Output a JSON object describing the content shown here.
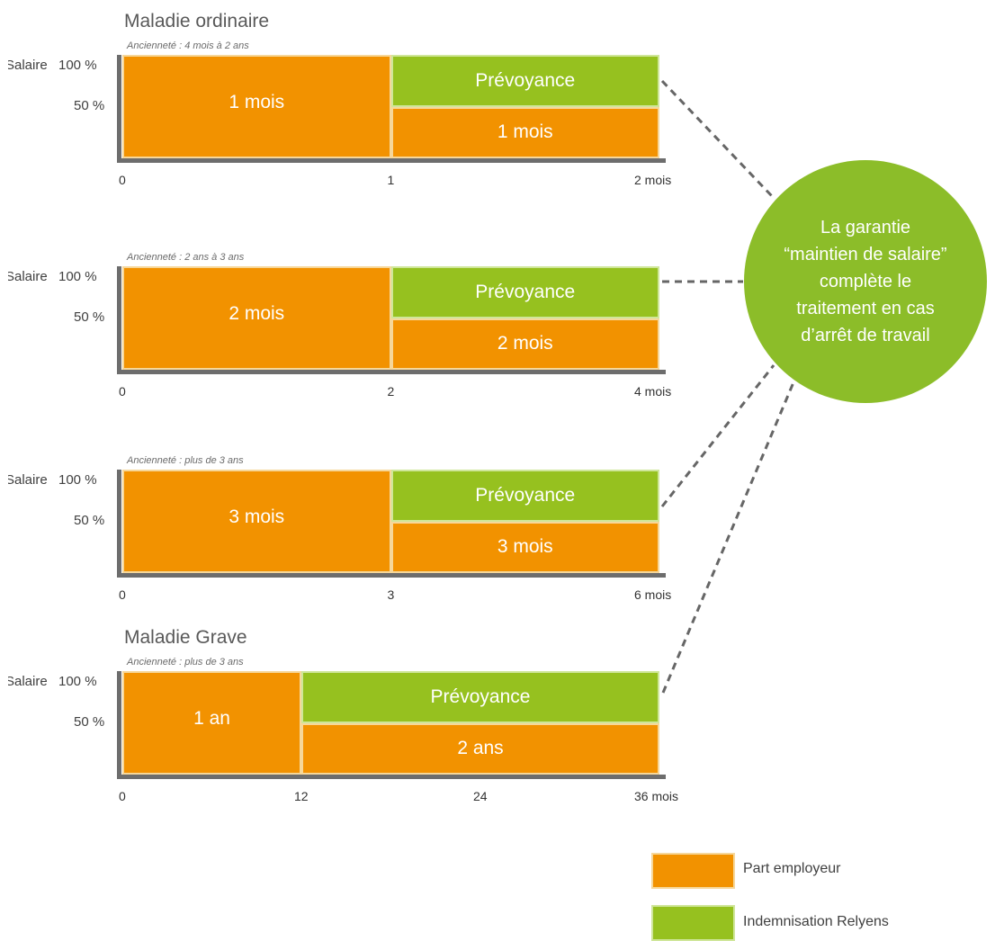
{
  "colors": {
    "employer": "#f29200",
    "relyens": "#96c11f",
    "circle": "#8cbd29",
    "axis": "#6d6d6d"
  },
  "callout": {
    "text": "La garantie\n“maintien de salaire”\ncomplète le\ntraitement en cas\nd’arrêt de travail"
  },
  "legend": [
    {
      "label": "Part employeur",
      "color": "#f29200"
    },
    {
      "label": "Indemnisation Relyens",
      "color": "#96c11f"
    }
  ],
  "chart_data": [
    {
      "type": "bar",
      "title": "Maladie ordinaire",
      "subtitle": "Ancienneté : 4 mois à 2 ans",
      "y_axis_label": "Salaire",
      "y_ticks": [
        "100 %",
        "50 %"
      ],
      "x_ticks": [
        "0",
        "1",
        "2 mois"
      ],
      "x_unit": "mois",
      "xlim": [
        0,
        2
      ],
      "segments": [
        {
          "series": "Part employeur",
          "x_start": 0,
          "x_end": 1,
          "salary_from": 0,
          "salary_to": 100,
          "label": "1 mois"
        },
        {
          "series": "Part employeur",
          "x_start": 1,
          "x_end": 2,
          "salary_from": 0,
          "salary_to": 50,
          "label": "1 mois"
        },
        {
          "series": "Indemnisation Relyens",
          "x_start": 1,
          "x_end": 2,
          "salary_from": 50,
          "salary_to": 100,
          "label": "Prévoyance"
        }
      ]
    },
    {
      "type": "bar",
      "subtitle": "Ancienneté : 2 ans à 3 ans",
      "y_axis_label": "Salaire",
      "y_ticks": [
        "100 %",
        "50 %"
      ],
      "x_ticks": [
        "0",
        "2",
        "4 mois"
      ],
      "x_unit": "mois",
      "xlim": [
        0,
        4
      ],
      "segments": [
        {
          "series": "Part employeur",
          "x_start": 0,
          "x_end": 2,
          "salary_from": 0,
          "salary_to": 100,
          "label": "2 mois"
        },
        {
          "series": "Part employeur",
          "x_start": 2,
          "x_end": 4,
          "salary_from": 0,
          "salary_to": 50,
          "label": "2 mois"
        },
        {
          "series": "Indemnisation Relyens",
          "x_start": 2,
          "x_end": 4,
          "salary_from": 50,
          "salary_to": 100,
          "label": "Prévoyance"
        }
      ]
    },
    {
      "type": "bar",
      "subtitle": "Ancienneté : plus de 3 ans",
      "y_axis_label": "Salaire",
      "y_ticks": [
        "100 %",
        "50 %"
      ],
      "x_ticks": [
        "0",
        "3",
        "6 mois"
      ],
      "x_unit": "mois",
      "xlim": [
        0,
        6
      ],
      "segments": [
        {
          "series": "Part employeur",
          "x_start": 0,
          "x_end": 3,
          "salary_from": 0,
          "salary_to": 100,
          "label": "3 mois"
        },
        {
          "series": "Part employeur",
          "x_start": 3,
          "x_end": 6,
          "salary_from": 0,
          "salary_to": 50,
          "label": "3 mois"
        },
        {
          "series": "Indemnisation Relyens",
          "x_start": 3,
          "x_end": 6,
          "salary_from": 50,
          "salary_to": 100,
          "label": "Prévoyance"
        }
      ]
    },
    {
      "type": "bar",
      "title": "Maladie Grave",
      "subtitle": "Ancienneté : plus de 3 ans",
      "y_axis_label": "Salaire",
      "y_ticks": [
        "100 %",
        "50 %"
      ],
      "x_ticks": [
        "0",
        "12",
        "24",
        "36 mois"
      ],
      "x_unit": "mois",
      "xlim": [
        0,
        36
      ],
      "segments": [
        {
          "series": "Part employeur",
          "x_start": 0,
          "x_end": 12,
          "salary_from": 0,
          "salary_to": 100,
          "label": "1 an"
        },
        {
          "series": "Part employeur",
          "x_start": 12,
          "x_end": 36,
          "salary_from": 0,
          "salary_to": 50,
          "label": "2 ans"
        },
        {
          "series": "Indemnisation Relyens",
          "x_start": 12,
          "x_end": 36,
          "salary_from": 50,
          "salary_to": 100,
          "label": "Prévoyance"
        }
      ]
    }
  ]
}
